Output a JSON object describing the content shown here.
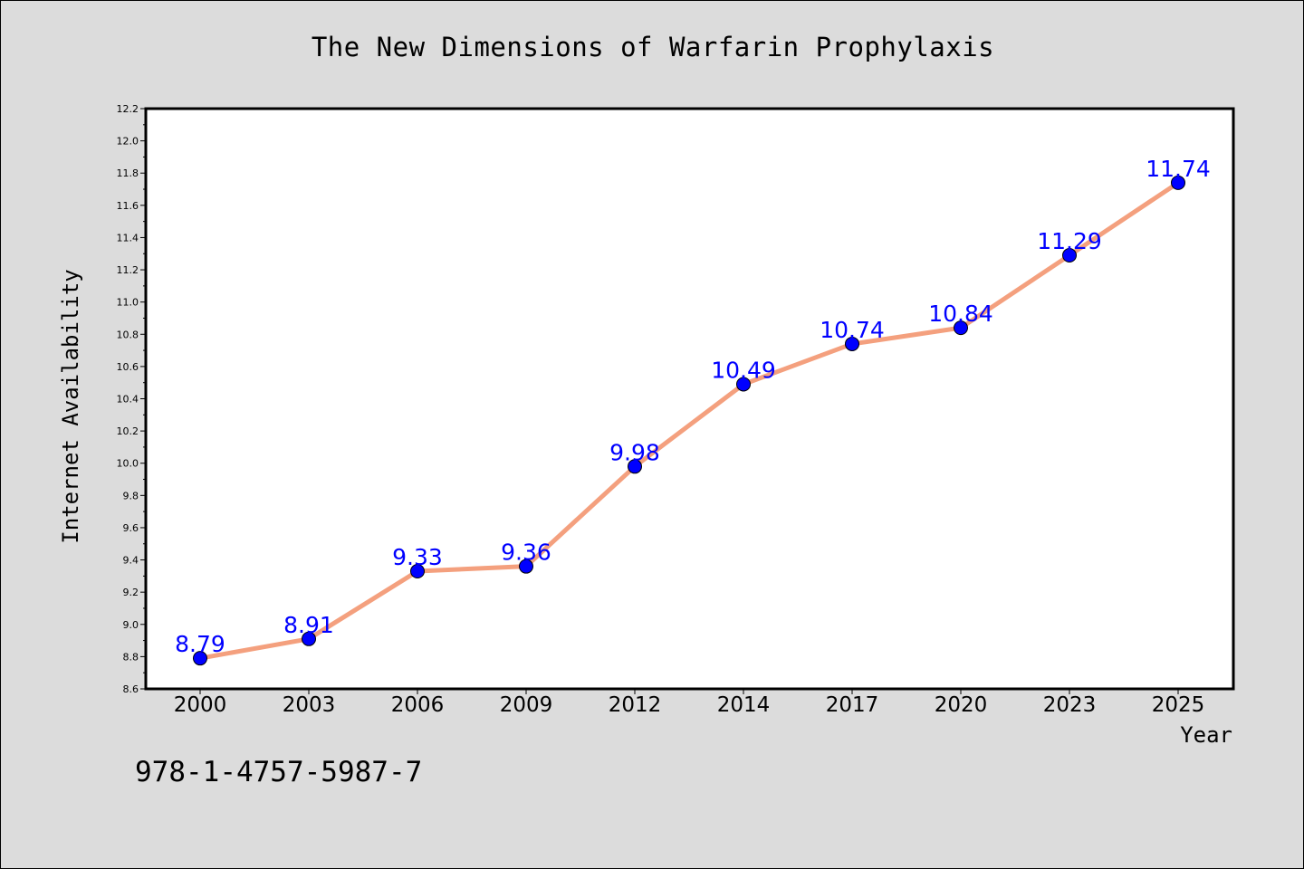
{
  "chart_data": {
    "type": "line",
    "title": "The New Dimensions of Warfarin Prophylaxis",
    "xlabel": "Year",
    "ylabel": "Internet Availability",
    "categories": [
      "2000",
      "2003",
      "2006",
      "2009",
      "2012",
      "2014",
      "2017",
      "2020",
      "2023",
      "2025"
    ],
    "series": [
      {
        "values": [
          8.79,
          8.91,
          9.33,
          9.36,
          9.98,
          10.49,
          10.74,
          10.84,
          11.29,
          11.74
        ],
        "value_labels": [
          "8.79",
          "8.91",
          "9.33",
          "9.36",
          "9.98",
          "10.49",
          "10.74",
          "10.84",
          "11.29",
          "11.74"
        ]
      }
    ],
    "ylim": [
      8.6,
      12.2
    ],
    "yticks": [
      "8.6",
      "8.8",
      "9.0",
      "9.2",
      "9.4",
      "9.6",
      "9.8",
      "10.0",
      "10.2",
      "10.4",
      "10.6",
      "10.8",
      "11.0",
      "11.2",
      "11.4",
      "11.6",
      "11.8",
      "12.0",
      "12.2"
    ],
    "grid": false,
    "legend": "none",
    "colors": {
      "line": "#f4a07e",
      "marker": "#0000ff",
      "data_label": "#0000ff",
      "background": "#dcdcdc",
      "plot_background": "#ffffff"
    }
  },
  "footer": {
    "isbn": "978-1-4757-5987-7"
  }
}
